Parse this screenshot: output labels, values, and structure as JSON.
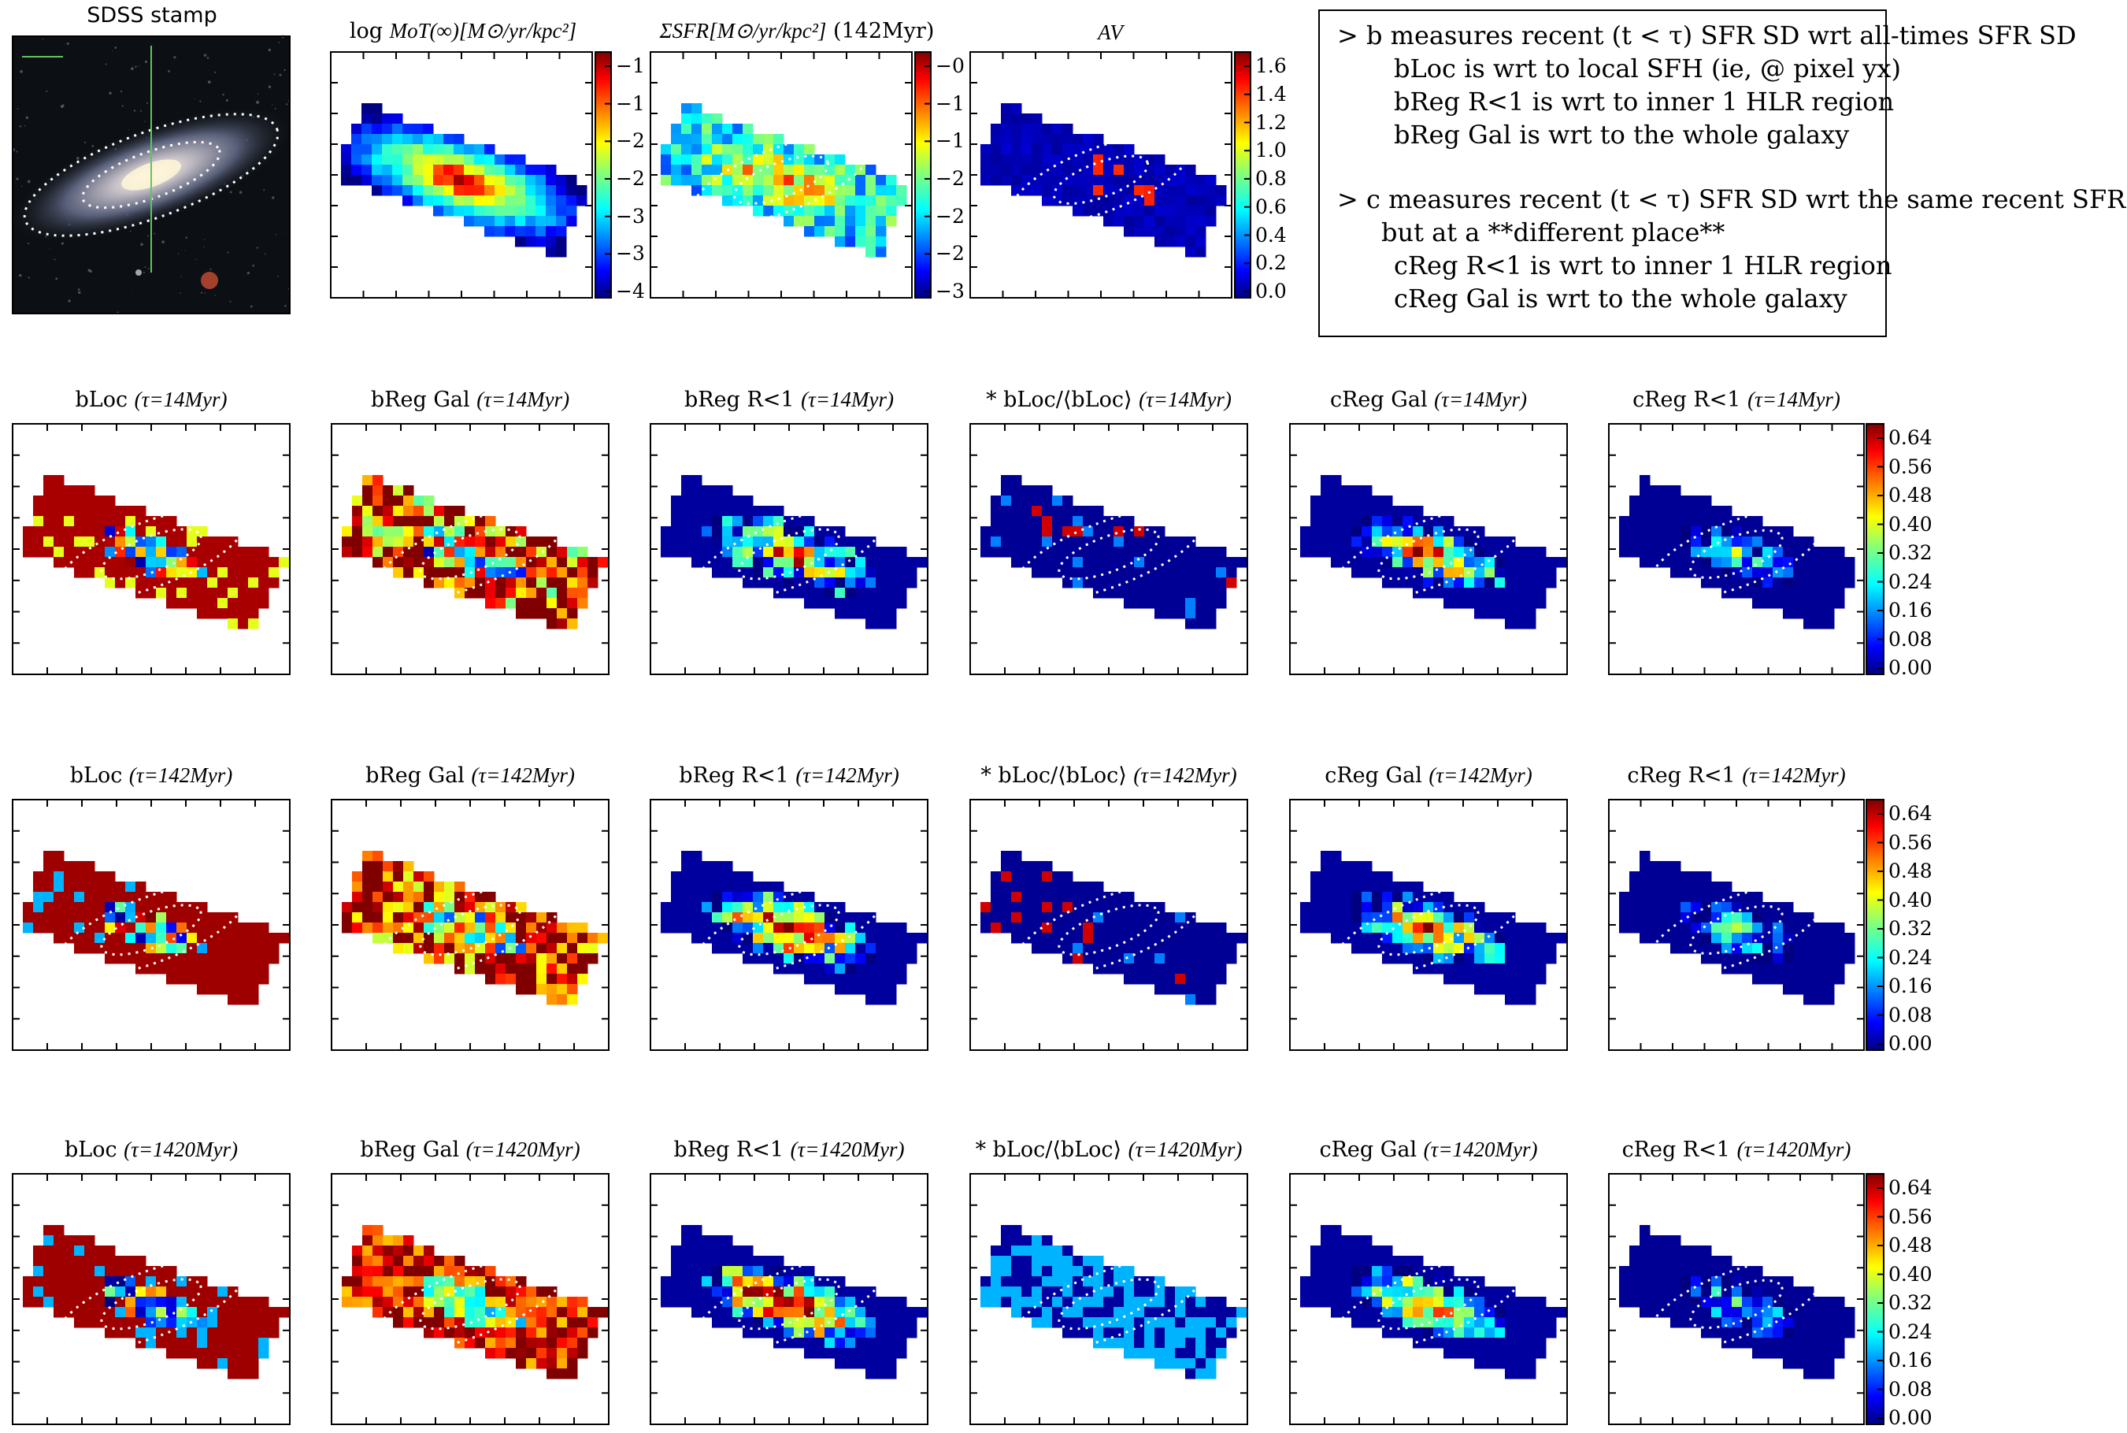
{
  "stamp": {
    "title": "SDSS stamp"
  },
  "top_panels": [
    {
      "title_plain": "log ",
      "title_math": "MoT(∞)[M⊙/yr/kpc²]",
      "title_suffix": "",
      "ticks": [
        "−1",
        "−1",
        "−2",
        "−2",
        "−3",
        "−3",
        "−4"
      ]
    },
    {
      "title_plain": "",
      "title_math": "ΣSFR[M⊙/yr/kpc²]",
      "title_suffix": " (142Myr)",
      "ticks": [
        "−0",
        "−1",
        "−1",
        "−2",
        "−2",
        "−2",
        "−3"
      ]
    },
    {
      "title_plain": "",
      "title_math": "AV",
      "title_suffix": "",
      "ticks": [
        "1.6",
        "1.4",
        "1.2",
        "1.0",
        "0.8",
        "0.6",
        "0.4",
        "0.2",
        "0.0"
      ]
    }
  ],
  "note": [
    "> b measures recent (t < τ) SFR SD wrt all-times SFR SD",
    "bLoc is wrt to local SFH (ie, @ pixel yx)",
    "bReg R<1 is wrt to inner 1 HLR region",
    "bReg Gal is wrt to the whole galaxy",
    "> c measures recent (t < τ) SFR SD wrt the same recent SFR SD",
    "but at a **different place**",
    "cReg R<1 is wrt to inner 1 HLR region",
    "cReg Gal is wrt to the whole galaxy"
  ],
  "grid_rows": [
    {
      "tau": "τ=14Myr"
    },
    {
      "tau": "τ=142Myr"
    },
    {
      "tau": "τ=1420Myr"
    }
  ],
  "grid_cols": [
    "bLoc",
    "bReg Gal",
    "bReg R<1",
    "* bLoc/⟨bLoc⟩",
    "cReg Gal",
    "cReg R<1"
  ],
  "colorbar_ticks": [
    "0.64",
    "0.56",
    "0.48",
    "0.40",
    "0.32",
    "0.24",
    "0.16",
    "0.08",
    "0.00"
  ],
  "chart_data": {
    "type": "heatmap",
    "colormap": "jet",
    "panels": [
      "log MoT(∞)",
      "ΣSFR (142Myr)",
      "AV",
      "bLoc",
      "bReg Gal",
      "bReg R<1",
      "* bLoc/⟨bLoc⟩",
      "cReg Gal",
      "cReg R<1"
    ],
    "taus_myr": [
      14,
      142,
      1420
    ],
    "colorbar_ratio_range": [
      0.0,
      0.68
    ],
    "av_range": [
      0.0,
      1.75
    ]
  }
}
